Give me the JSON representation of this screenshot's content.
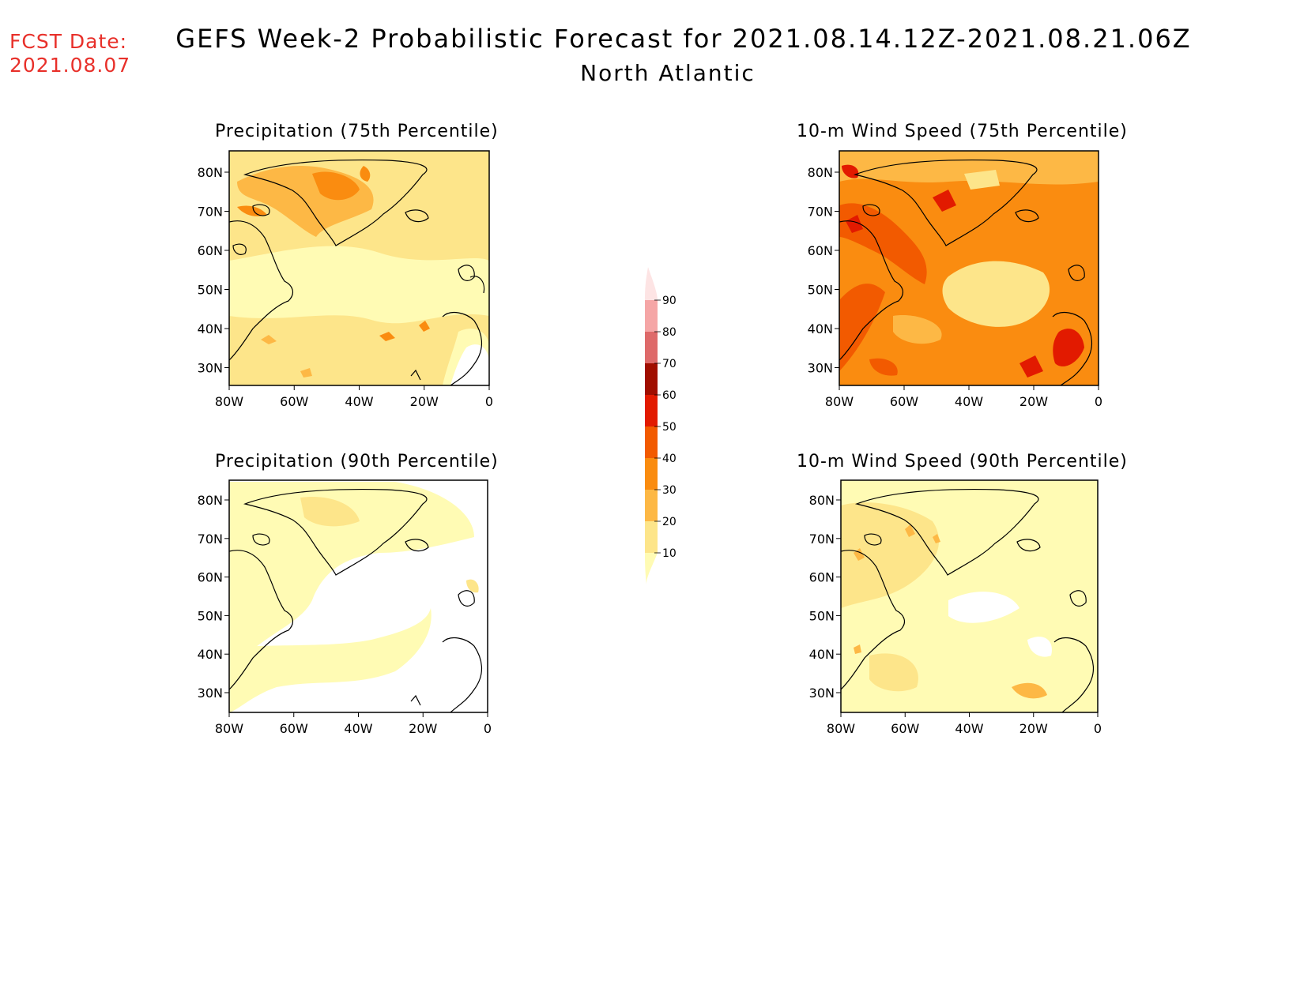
{
  "fcst": {
    "label": "FCST Date:",
    "date": "2021.08.07"
  },
  "title": "GEFS Week-2 Probabilistic Forecast for 2021.08.14.12Z-2021.08.21.06Z",
  "subtitle": "North Atlantic",
  "panels": [
    {
      "title": "Precipitation (75th Percentile)"
    },
    {
      "title": "10-m Wind Speed (75th Percentile)"
    },
    {
      "title": "Precipitation (90th Percentile)"
    },
    {
      "title": "10-m Wind Speed (90th Percentile)"
    }
  ],
  "axes": {
    "lon_ticks": [
      "80W",
      "60W",
      "40W",
      "20W",
      "0"
    ],
    "lat_ticks": [
      "80N",
      "70N",
      "60N",
      "50N",
      "40N",
      "30N"
    ]
  },
  "colorbar": {
    "levels": [
      "10",
      "20",
      "30",
      "40",
      "50",
      "60",
      "70",
      "80",
      "90"
    ],
    "colors": [
      "#fffbb4",
      "#fde58a",
      "#fdb845",
      "#fa8c10",
      "#f25a00",
      "#e21a00",
      "#a00e00",
      "#de6a6a",
      "#f5a6a6",
      "#fde4e4"
    ]
  }
}
